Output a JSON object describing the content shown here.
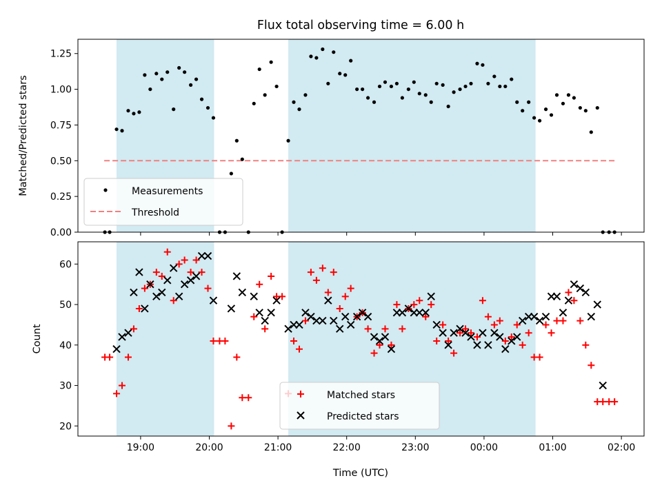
{
  "chart_data": [
    {
      "type": "scatter",
      "title": "Flux total observing time = 6.00 h",
      "xlabel": "",
      "ylabel": "Matched/Predicted stars",
      "ylim": [
        0,
        1.35
      ],
      "yticks": [
        "0.00",
        "0.25",
        "0.50",
        "0.75",
        "1.00",
        "1.25"
      ],
      "x_unit": "hours since 18:00 UTC",
      "xlim": [
        0.0875,
        8.33
      ],
      "shaded_intervals": [
        [
          0.65,
          2.07
        ],
        [
          3.15,
          6.75
        ]
      ],
      "shade_color": "#add8e6",
      "legend_position": "lower left",
      "threshold": {
        "name": "Threshold",
        "value": 0.5,
        "x_range": [
          0.47,
          7.93
        ],
        "color": "#f08080"
      },
      "series": [
        {
          "name": "Measurements",
          "color": "#000000",
          "points": [
            [
              0.48,
              0.0
            ],
            [
              0.55,
              0.0
            ],
            [
              0.65,
              0.72
            ],
            [
              0.73,
              0.71
            ],
            [
              0.82,
              0.85
            ],
            [
              0.9,
              0.83
            ],
            [
              0.98,
              0.84
            ],
            [
              1.06,
              1.1
            ],
            [
              1.14,
              1.0
            ],
            [
              1.23,
              1.11
            ],
            [
              1.31,
              1.07
            ],
            [
              1.39,
              1.12
            ],
            [
              1.48,
              0.86
            ],
            [
              1.56,
              1.15
            ],
            [
              1.64,
              1.12
            ],
            [
              1.73,
              1.03
            ],
            [
              1.81,
              1.07
            ],
            [
              1.89,
              0.93
            ],
            [
              1.98,
              0.87
            ],
            [
              2.06,
              0.8
            ],
            [
              2.15,
              0.0
            ],
            [
              2.23,
              0.0
            ],
            [
              2.32,
              0.41
            ],
            [
              2.4,
              0.64
            ],
            [
              2.48,
              0.51
            ],
            [
              2.57,
              0.0
            ],
            [
              2.65,
              0.9
            ],
            [
              2.73,
              1.14
            ],
            [
              2.81,
              0.96
            ],
            [
              2.9,
              1.19
            ],
            [
              2.98,
              1.02
            ],
            [
              3.06,
              0.0
            ],
            [
              3.15,
              0.64
            ],
            [
              3.23,
              0.91
            ],
            [
              3.31,
              0.86
            ],
            [
              3.4,
              0.96
            ],
            [
              3.48,
              1.23
            ],
            [
              3.56,
              1.22
            ],
            [
              3.65,
              1.28
            ],
            [
              3.73,
              1.04
            ],
            [
              3.81,
              1.26
            ],
            [
              3.9,
              1.11
            ],
            [
              3.98,
              1.1
            ],
            [
              4.06,
              1.2
            ],
            [
              4.15,
              1.0
            ],
            [
              4.23,
              1.0
            ],
            [
              4.31,
              0.94
            ],
            [
              4.4,
              0.91
            ],
            [
              4.48,
              1.02
            ],
            [
              4.56,
              1.05
            ],
            [
              4.65,
              1.02
            ],
            [
              4.73,
              1.04
            ],
            [
              4.81,
              0.94
            ],
            [
              4.9,
              1.0
            ],
            [
              4.98,
              1.05
            ],
            [
              5.06,
              0.97
            ],
            [
              5.15,
              0.96
            ],
            [
              5.23,
              0.91
            ],
            [
              5.31,
              1.04
            ],
            [
              5.4,
              1.03
            ],
            [
              5.48,
              0.88
            ],
            [
              5.56,
              0.98
            ],
            [
              5.65,
              1.0
            ],
            [
              5.73,
              1.02
            ],
            [
              5.81,
              1.04
            ],
            [
              5.9,
              1.18
            ],
            [
              5.98,
              1.17
            ],
            [
              6.06,
              1.04
            ],
            [
              6.15,
              1.09
            ],
            [
              6.23,
              1.02
            ],
            [
              6.31,
              1.02
            ],
            [
              6.4,
              1.07
            ],
            [
              6.48,
              0.91
            ],
            [
              6.56,
              0.85
            ],
            [
              6.65,
              0.91
            ],
            [
              6.73,
              0.8
            ],
            [
              6.81,
              0.78
            ],
            [
              6.9,
              0.86
            ],
            [
              6.98,
              0.82
            ],
            [
              7.06,
              0.96
            ],
            [
              7.15,
              0.9
            ],
            [
              7.23,
              0.96
            ],
            [
              7.31,
              0.94
            ],
            [
              7.4,
              0.87
            ],
            [
              7.48,
              0.85
            ],
            [
              7.56,
              0.7
            ],
            [
              7.65,
              0.87
            ],
            [
              7.73,
              0.0
            ],
            [
              7.82,
              0.0
            ],
            [
              7.9,
              0.0
            ]
          ]
        }
      ],
      "legend": [
        {
          "label": "Measurements",
          "marker": "dot"
        },
        {
          "label": "Threshold",
          "marker": "dashed-line"
        }
      ]
    },
    {
      "type": "scatter",
      "title": "",
      "xlabel": "Time (UTC)",
      "ylabel": "Count",
      "ylim": [
        17.5,
        65.5
      ],
      "yticks": [
        "20",
        "30",
        "40",
        "50",
        "60"
      ],
      "xticks": [
        "19:00",
        "20:00",
        "21:00",
        "22:00",
        "23:00",
        "00:00",
        "01:00",
        "02:00"
      ],
      "x_unit": "hours since 18:00 UTC",
      "xlim": [
        0.0875,
        8.33
      ],
      "shaded_intervals": [
        [
          0.65,
          2.07
        ],
        [
          3.15,
          6.75
        ]
      ],
      "shade_color": "#add8e6",
      "legend_position": "lower center",
      "series": [
        {
          "name": "Matched stars",
          "marker": "plus",
          "color": "#ff0000",
          "points": [
            [
              0.48,
              37
            ],
            [
              0.55,
              37
            ],
            [
              0.65,
              28
            ],
            [
              0.73,
              30
            ],
            [
              0.82,
              37
            ],
            [
              0.9,
              44
            ],
            [
              0.98,
              49
            ],
            [
              1.06,
              54
            ],
            [
              1.14,
              55
            ],
            [
              1.23,
              58
            ],
            [
              1.31,
              57
            ],
            [
              1.39,
              63
            ],
            [
              1.48,
              51
            ],
            [
              1.56,
              60
            ],
            [
              1.64,
              61
            ],
            [
              1.73,
              58
            ],
            [
              1.81,
              61
            ],
            [
              1.89,
              58
            ],
            [
              1.98,
              54
            ],
            [
              2.06,
              41
            ],
            [
              2.15,
              41
            ],
            [
              2.23,
              41
            ],
            [
              2.32,
              20
            ],
            [
              2.4,
              37
            ],
            [
              2.48,
              27
            ],
            [
              2.57,
              27
            ],
            [
              2.65,
              47
            ],
            [
              2.73,
              55
            ],
            [
              2.81,
              44
            ],
            [
              2.9,
              57
            ],
            [
              2.98,
              52
            ],
            [
              3.06,
              52
            ],
            [
              3.15,
              28
            ],
            [
              3.23,
              41
            ],
            [
              3.31,
              39
            ],
            [
              3.4,
              46
            ],
            [
              3.48,
              58
            ],
            [
              3.56,
              56
            ],
            [
              3.65,
              59
            ],
            [
              3.73,
              53
            ],
            [
              3.81,
              58
            ],
            [
              3.9,
              49
            ],
            [
              3.98,
              52
            ],
            [
              4.06,
              54
            ],
            [
              4.15,
              47
            ],
            [
              4.23,
              48
            ],
            [
              4.31,
              44
            ],
            [
              4.4,
              38
            ],
            [
              4.48,
              40
            ],
            [
              4.56,
              44
            ],
            [
              4.65,
              40
            ],
            [
              4.73,
              50
            ],
            [
              4.81,
              44
            ],
            [
              4.9,
              49
            ],
            [
              4.98,
              50
            ],
            [
              5.06,
              51
            ],
            [
              5.15,
              47
            ],
            [
              5.23,
              50
            ],
            [
              5.31,
              41
            ],
            [
              5.4,
              45
            ],
            [
              5.48,
              41
            ],
            [
              5.56,
              38
            ],
            [
              5.65,
              43
            ],
            [
              5.73,
              44
            ],
            [
              5.81,
              43
            ],
            [
              5.9,
              42
            ],
            [
              5.98,
              51
            ],
            [
              6.06,
              47
            ],
            [
              6.15,
              45
            ],
            [
              6.23,
              46
            ],
            [
              6.31,
              41
            ],
            [
              6.4,
              42
            ],
            [
              6.48,
              45
            ],
            [
              6.56,
              40
            ],
            [
              6.65,
              43
            ],
            [
              6.73,
              37
            ],
            [
              6.81,
              37
            ],
            [
              6.9,
              45
            ],
            [
              6.98,
              43
            ],
            [
              7.06,
              46
            ],
            [
              7.15,
              46
            ],
            [
              7.23,
              53
            ],
            [
              7.31,
              51
            ],
            [
              7.4,
              46
            ],
            [
              7.48,
              40
            ],
            [
              7.56,
              35
            ],
            [
              7.65,
              26
            ],
            [
              7.73,
              26
            ],
            [
              7.82,
              26
            ],
            [
              7.9,
              26
            ]
          ]
        },
        {
          "name": "Predicted stars",
          "marker": "x",
          "color": "#000000",
          "points": [
            [
              0.65,
              39
            ],
            [
              0.73,
              42
            ],
            [
              0.82,
              43
            ],
            [
              0.9,
              53
            ],
            [
              0.98,
              58
            ],
            [
              1.06,
              49
            ],
            [
              1.14,
              55
            ],
            [
              1.23,
              52
            ],
            [
              1.31,
              53
            ],
            [
              1.39,
              56
            ],
            [
              1.48,
              59
            ],
            [
              1.56,
              52
            ],
            [
              1.64,
              55
            ],
            [
              1.73,
              56
            ],
            [
              1.81,
              57
            ],
            [
              1.89,
              62
            ],
            [
              1.98,
              62
            ],
            [
              2.06,
              51
            ],
            [
              2.32,
              49
            ],
            [
              2.4,
              57
            ],
            [
              2.48,
              53
            ],
            [
              2.65,
              52
            ],
            [
              2.73,
              48
            ],
            [
              2.81,
              46
            ],
            [
              2.9,
              48
            ],
            [
              2.98,
              51
            ],
            [
              3.15,
              44
            ],
            [
              3.23,
              45
            ],
            [
              3.31,
              45
            ],
            [
              3.4,
              48
            ],
            [
              3.48,
              47
            ],
            [
              3.56,
              46
            ],
            [
              3.65,
              46
            ],
            [
              3.73,
              51
            ],
            [
              3.81,
              46
            ],
            [
              3.9,
              44
            ],
            [
              3.98,
              47
            ],
            [
              4.06,
              45
            ],
            [
              4.15,
              47
            ],
            [
              4.23,
              48
            ],
            [
              4.31,
              47
            ],
            [
              4.4,
              42
            ],
            [
              4.48,
              41
            ],
            [
              4.56,
              42
            ],
            [
              4.65,
              39
            ],
            [
              4.73,
              48
            ],
            [
              4.81,
              48
            ],
            [
              4.9,
              49
            ],
            [
              4.98,
              48
            ],
            [
              5.06,
              48
            ],
            [
              5.15,
              48
            ],
            [
              5.23,
              52
            ],
            [
              5.31,
              45
            ],
            [
              5.4,
              43
            ],
            [
              5.48,
              40
            ],
            [
              5.56,
              43
            ],
            [
              5.65,
              44
            ],
            [
              5.73,
              43
            ],
            [
              5.81,
              42
            ],
            [
              5.9,
              40
            ],
            [
              5.98,
              43
            ],
            [
              6.06,
              40
            ],
            [
              6.15,
              43
            ],
            [
              6.23,
              42
            ],
            [
              6.31,
              39
            ],
            [
              6.4,
              41
            ],
            [
              6.48,
              42
            ],
            [
              6.56,
              46
            ],
            [
              6.65,
              47
            ],
            [
              6.73,
              47
            ],
            [
              6.81,
              46
            ],
            [
              6.9,
              47
            ],
            [
              6.98,
              52
            ],
            [
              7.06,
              52
            ],
            [
              7.15,
              48
            ],
            [
              7.23,
              51
            ],
            [
              7.31,
              55
            ],
            [
              7.4,
              54
            ],
            [
              7.48,
              53
            ],
            [
              7.56,
              47
            ],
            [
              7.65,
              50
            ],
            [
              7.73,
              30
            ]
          ]
        }
      ],
      "legend": [
        {
          "label": "Matched stars",
          "marker": "plus"
        },
        {
          "label": "Predicted stars",
          "marker": "x"
        }
      ]
    }
  ]
}
